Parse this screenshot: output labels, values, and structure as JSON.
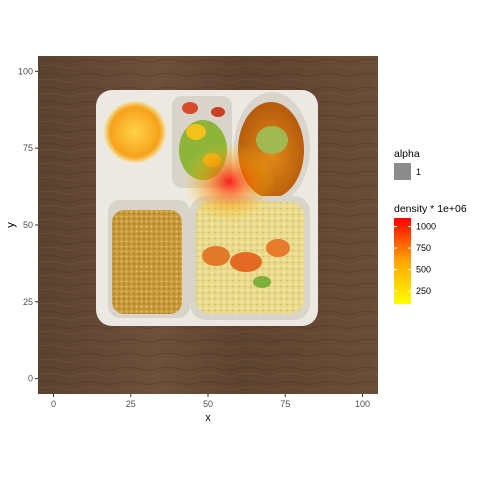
{
  "chart_data": {
    "type": "heatmap",
    "title": "",
    "xlabel": "x",
    "ylabel": "y",
    "xlim": [
      -5,
      105
    ],
    "ylim": [
      105,
      -5
    ],
    "y_reversed": true,
    "x_ticks": [
      0,
      25,
      50,
      75,
      100
    ],
    "y_ticks": [
      0,
      25,
      50,
      75,
      100
    ],
    "background": "photo of a compartment meal tray on a wooden table (orange slice, salad, soup, breaded cutlet, rice with shrimp)",
    "density_overlay": {
      "x_range": [
        10,
        81
      ],
      "y_range": [
        18,
        80
      ],
      "alpha": 1,
      "peak_point": {
        "x": 57,
        "y": 64
      },
      "peak_density": 1100
    },
    "legend": {
      "placement": "right",
      "alpha": {
        "title": "alpha",
        "entries": [
          {
            "label": "1",
            "color": "#8c8c8c"
          }
        ]
      },
      "density": {
        "title": "density * 1e+06",
        "breaks": [
          1000,
          750,
          500,
          250
        ],
        "range": [
          100,
          1100
        ],
        "low_color": "#ffff00",
        "high_color": "#ff0000"
      }
    }
  }
}
